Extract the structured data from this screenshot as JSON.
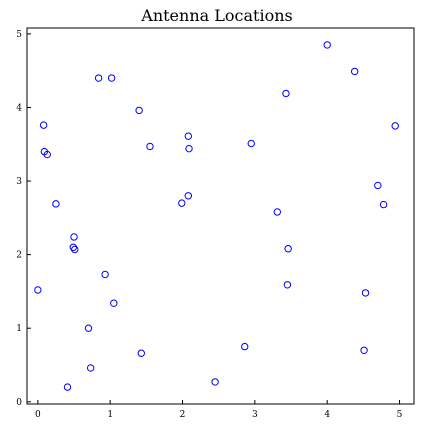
{
  "chart_data": {
    "type": "scatter",
    "title": "Antenna Locations",
    "xlabel": "",
    "ylabel": "",
    "xlim": [
      -0.15,
      5.2
    ],
    "ylim": [
      -0.03,
      5.08
    ],
    "xticks": [
      0,
      1,
      2,
      3,
      4,
      5
    ],
    "yticks": [
      0,
      1,
      2,
      3,
      4,
      5
    ],
    "grid": false,
    "marker": "hollow-circle",
    "marker_color": "#0000ff",
    "points": [
      {
        "x": 0.08,
        "y": 3.76
      },
      {
        "x": 0.09,
        "y": 3.4
      },
      {
        "x": 0.13,
        "y": 3.36
      },
      {
        "x": 0.25,
        "y": 2.69
      },
      {
        "x": 0.0,
        "y": 1.52
      },
      {
        "x": 0.5,
        "y": 2.24
      },
      {
        "x": 0.49,
        "y": 2.1
      },
      {
        "x": 0.51,
        "y": 2.07
      },
      {
        "x": 0.41,
        "y": 0.2
      },
      {
        "x": 0.7,
        "y": 1.0
      },
      {
        "x": 0.73,
        "y": 0.46
      },
      {
        "x": 0.84,
        "y": 4.4
      },
      {
        "x": 1.02,
        "y": 4.4
      },
      {
        "x": 0.93,
        "y": 1.73
      },
      {
        "x": 1.05,
        "y": 1.34
      },
      {
        "x": 1.4,
        "y": 3.96
      },
      {
        "x": 1.55,
        "y": 3.47
      },
      {
        "x": 1.43,
        "y": 0.66
      },
      {
        "x": 2.08,
        "y": 3.61
      },
      {
        "x": 2.09,
        "y": 3.44
      },
      {
        "x": 2.08,
        "y": 2.8
      },
      {
        "x": 1.99,
        "y": 2.7
      },
      {
        "x": 2.95,
        "y": 3.51
      },
      {
        "x": 2.45,
        "y": 0.27
      },
      {
        "x": 2.86,
        "y": 0.75
      },
      {
        "x": 3.31,
        "y": 2.58
      },
      {
        "x": 3.43,
        "y": 4.19
      },
      {
        "x": 3.46,
        "y": 2.08
      },
      {
        "x": 3.45,
        "y": 1.59
      },
      {
        "x": 4.0,
        "y": 4.85
      },
      {
        "x": 4.38,
        "y": 4.49
      },
      {
        "x": 4.7,
        "y": 2.94
      },
      {
        "x": 4.78,
        "y": 2.68
      },
      {
        "x": 4.53,
        "y": 1.48
      },
      {
        "x": 4.51,
        "y": 0.7
      },
      {
        "x": 4.94,
        "y": 3.75
      }
    ]
  }
}
